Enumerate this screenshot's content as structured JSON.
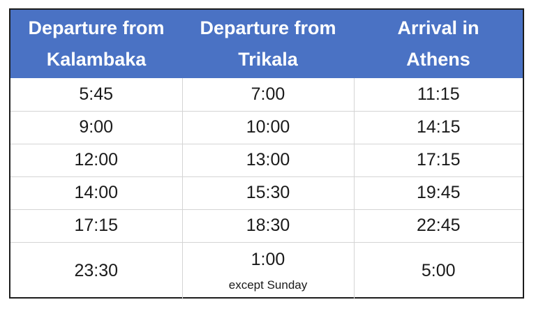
{
  "headers": [
    [
      "Departure from",
      "Kalambaka"
    ],
    [
      "Departure from",
      "Trikala"
    ],
    [
      "Arrival in",
      "Athens"
    ]
  ],
  "rows": [
    [
      "5:45",
      "7:00",
      "11:15"
    ],
    [
      "9:00",
      "10:00",
      "14:15"
    ],
    [
      "12:00",
      "13:00",
      "17:15"
    ],
    [
      "14:00",
      "15:30",
      "19:45"
    ],
    [
      "17:15",
      "18:30",
      "22:45"
    ],
    [
      "23:30",
      "1:00",
      "5:00"
    ]
  ],
  "notes": {
    "last_trikala": "except Sunday"
  },
  "colors": {
    "header_background": "#4a72c4",
    "header_text": "#ffffff",
    "grid_lines": "#d4d4d4"
  }
}
